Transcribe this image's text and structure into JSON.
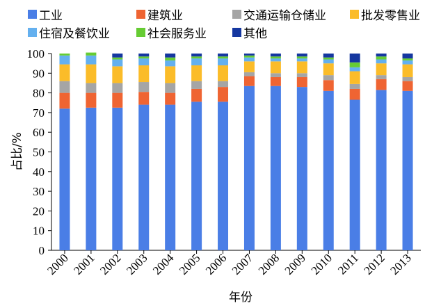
{
  "chart_data": {
    "type": "bar",
    "stacked": true,
    "xlabel": "年份",
    "ylabel": "占比/%",
    "ylim": [
      0,
      100
    ],
    "yticks": [
      0,
      10,
      20,
      30,
      40,
      50,
      60,
      70,
      80,
      90,
      100
    ],
    "categories": [
      "2000",
      "2001",
      "2002",
      "2003",
      "2004",
      "2005",
      "2006",
      "2007",
      "2008",
      "2009",
      "2010",
      "2011",
      "2012",
      "2013"
    ],
    "series": [
      {
        "name": "工业",
        "color": "#4a7ee6",
        "values": [
          72,
          72.5,
          72.5,
          74,
          74,
          75.5,
          75.5,
          83.5,
          83.5,
          83,
          81,
          76.5,
          81.5,
          81
        ]
      },
      {
        "name": "建筑业",
        "color": "#ef6432",
        "values": [
          8,
          7.5,
          7.5,
          6.5,
          6,
          6.5,
          7.5,
          5,
          4.5,
          5,
          5.5,
          5.5,
          5.5,
          5
        ]
      },
      {
        "name": "交通运输仓储业",
        "color": "#a5a5a5",
        "values": [
          6,
          5,
          5,
          5,
          5,
          4,
          3,
          2,
          2,
          2,
          2.5,
          2.5,
          2,
          2
        ]
      },
      {
        "name": "批发零售业",
        "color": "#fbbc29",
        "values": [
          8.5,
          9.5,
          8.5,
          8.5,
          8.5,
          8,
          8,
          5.5,
          6,
          6,
          6,
          6.5,
          6,
          6.5
        ]
      },
      {
        "name": "住宿及餐饮业",
        "color": "#64b0ef",
        "values": [
          4.5,
          4.5,
          3.5,
          3.5,
          3,
          3.5,
          3.5,
          2,
          1.5,
          1.5,
          2,
          2,
          2,
          2
        ]
      },
      {
        "name": "社会服务业",
        "color": "#66cc33",
        "values": [
          1,
          1.5,
          1,
          1,
          1.5,
          1,
          1,
          1,
          1,
          1,
          1,
          2.5,
          1.5,
          1
        ]
      },
      {
        "name": "其他",
        "color": "#1537a0",
        "values": [
          0,
          0,
          2,
          1.5,
          2,
          1.5,
          1.5,
          1,
          1.5,
          1.5,
          2,
          4.5,
          1.5,
          2.5
        ]
      }
    ]
  }
}
